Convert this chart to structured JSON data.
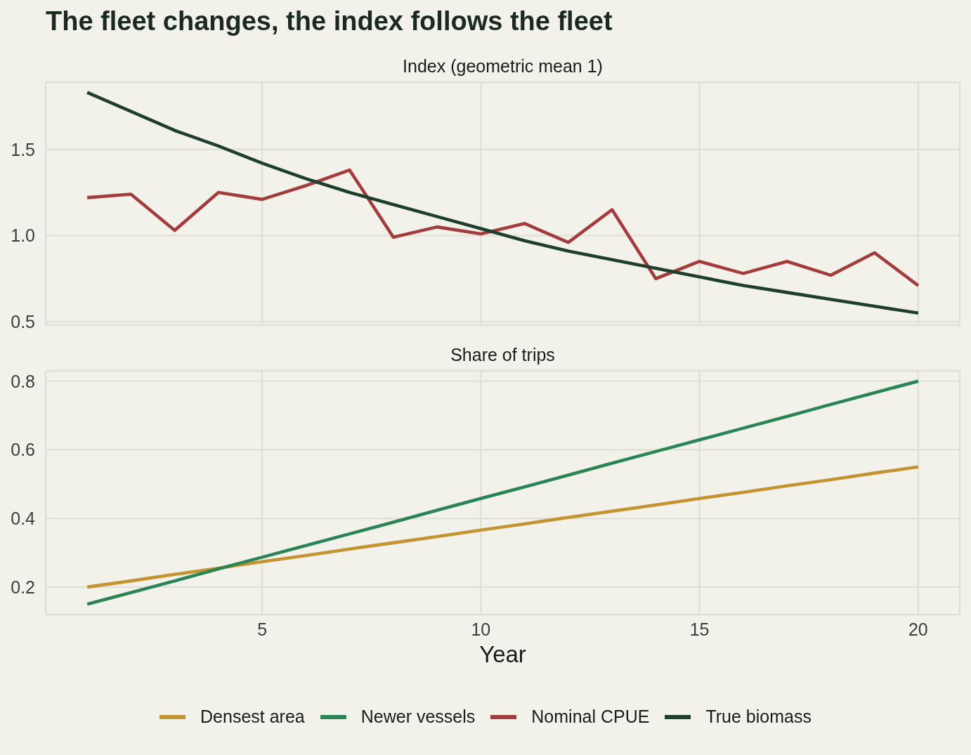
{
  "chart_data": [
    {
      "type": "line",
      "title": "The fleet changes, the index follows the fleet",
      "subtitle": "Index (geometric mean 1)",
      "x": [
        1,
        2,
        3,
        4,
        5,
        6,
        7,
        8,
        9,
        10,
        11,
        12,
        13,
        14,
        15,
        16,
        17,
        18,
        19,
        20
      ],
      "xlim": [
        0.05,
        20.95
      ],
      "xticks": [
        5,
        10,
        15,
        20
      ],
      "ylim": [
        0.48,
        1.89
      ],
      "yticks": [
        0.5,
        {
          "value": 1,
          "label": "1.0"
        },
        1.5
      ],
      "tick_labels": "y",
      "grid": true,
      "legend": "bottom",
      "series": [
        {
          "name": "Nominal CPUE",
          "color": "#a33c3c",
          "values": [
            1.22,
            1.24,
            1.03,
            1.25,
            1.21,
            1.29,
            1.38,
            0.99,
            1.05,
            1.01,
            1.07,
            0.96,
            1.15,
            0.75,
            0.85,
            0.78,
            0.85,
            0.77,
            0.9,
            0.71
          ]
        },
        {
          "name": "True biomass",
          "color": "#1e3f2c",
          "values": [
            1.83,
            1.72,
            1.61,
            1.52,
            1.42,
            1.33,
            1.25,
            1.18,
            1.11,
            1.04,
            0.97,
            0.91,
            0.86,
            0.81,
            0.76,
            0.71,
            0.67,
            0.63,
            0.59,
            0.55
          ]
        }
      ]
    },
    {
      "type": "line",
      "title": "Share of trips",
      "xlabel": "Year",
      "x": [
        1,
        2,
        3,
        4,
        5,
        6,
        7,
        8,
        9,
        10,
        11,
        12,
        13,
        14,
        15,
        16,
        17,
        18,
        19,
        20
      ],
      "xlim": [
        0.05,
        20.95
      ],
      "xticks": [
        5,
        10,
        15,
        20
      ],
      "ylim": [
        0.12,
        0.83
      ],
      "yticks": [
        0.2,
        0.4,
        0.6,
        0.8
      ],
      "grid": true,
      "legend": "bottom",
      "series": [
        {
          "name": "Densest area",
          "color": "#c49433",
          "values": [
            0.2,
            0.218,
            0.237,
            0.255,
            0.274,
            0.292,
            0.311,
            0.329,
            0.347,
            0.366,
            0.384,
            0.403,
            0.421,
            0.439,
            0.458,
            0.476,
            0.495,
            0.513,
            0.532,
            0.55
          ]
        },
        {
          "name": "Newer vessels",
          "color": "#2a8454",
          "values": [
            0.15,
            0.184,
            0.218,
            0.253,
            0.287,
            0.321,
            0.355,
            0.389,
            0.424,
            0.458,
            0.492,
            0.526,
            0.561,
            0.595,
            0.629,
            0.663,
            0.697,
            0.732,
            0.766,
            0.8
          ]
        }
      ]
    }
  ]
}
